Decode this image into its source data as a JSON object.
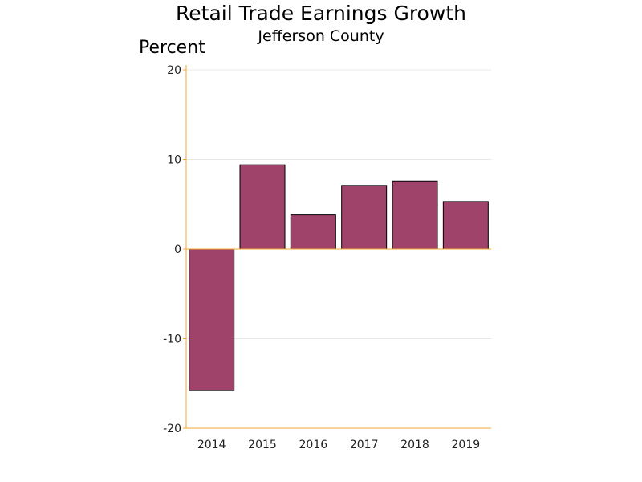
{
  "chart_data": {
    "type": "bar",
    "title": "Retail Trade Earnings Growth",
    "subtitle": "Jefferson County",
    "ylabel": "Percent",
    "xlabel": "",
    "categories": [
      "2014",
      "2015",
      "2016",
      "2017",
      "2018",
      "2019"
    ],
    "values": [
      -15.8,
      9.4,
      3.8,
      7.1,
      7.6,
      5.3
    ],
    "ylim": [
      -20,
      20
    ],
    "yticks": [
      20,
      10,
      0,
      -10,
      -20
    ],
    "grid": true,
    "legend": "none",
    "bar_color": "#A0436A",
    "bar_edge_color": "#000000",
    "axis_color": "#F0A830",
    "grid_color": "#E8E8E8"
  }
}
